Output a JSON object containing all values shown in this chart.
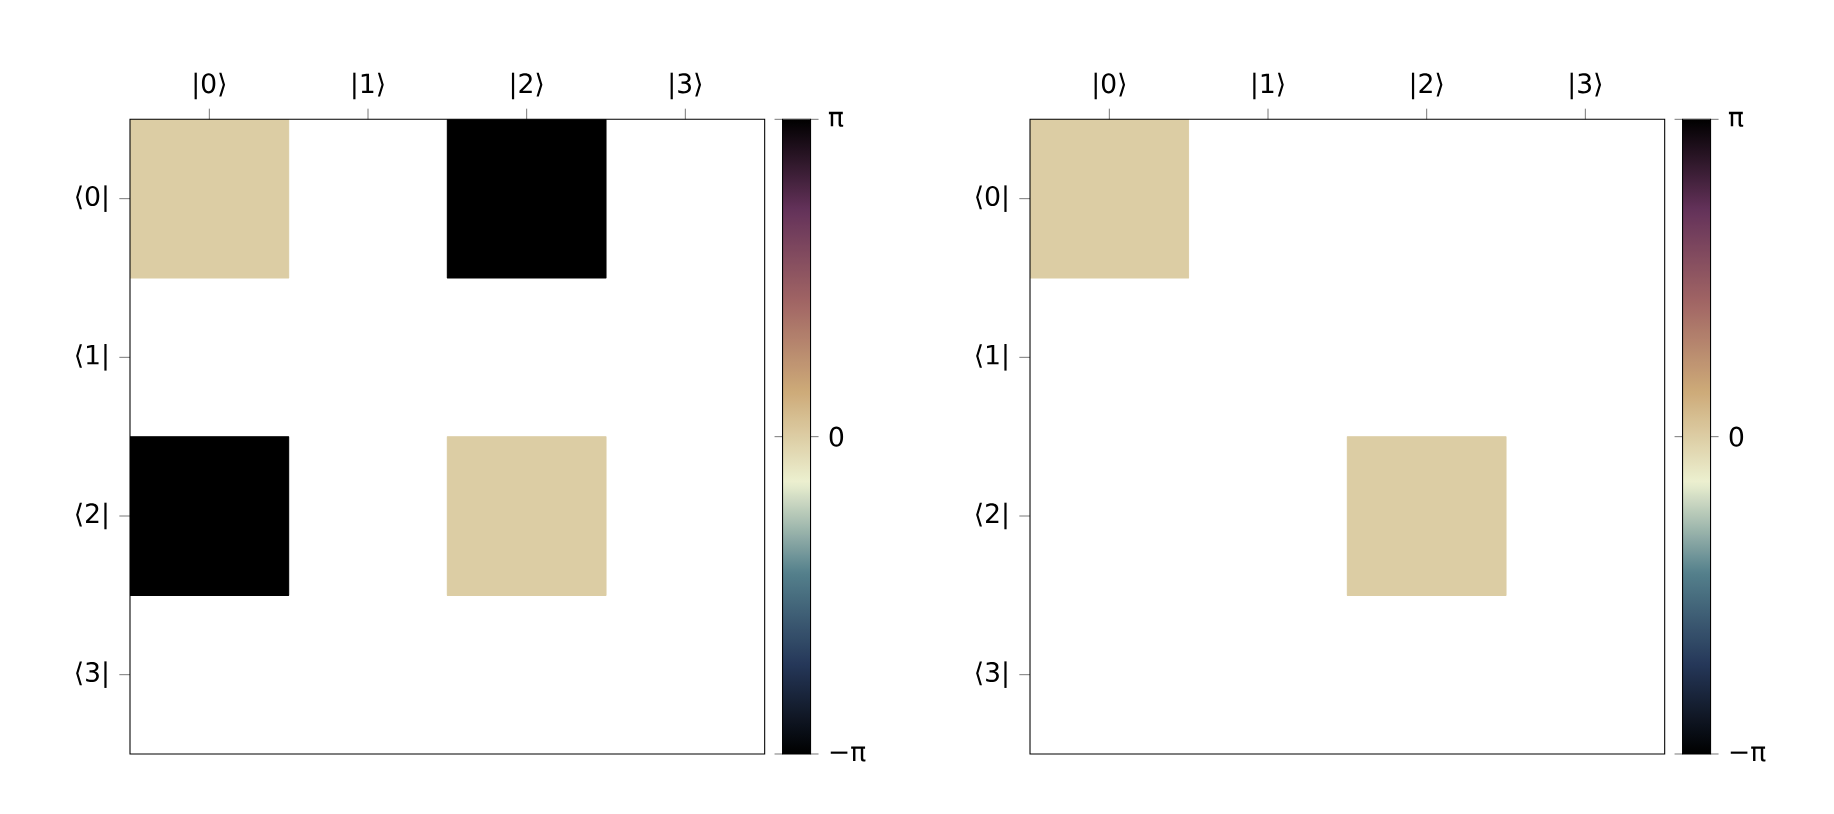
{
  "chart_data": [
    {
      "type": "heatmap",
      "categories": [
        "|0⟩",
        "|1⟩",
        "|2⟩",
        "|3⟩"
      ],
      "y_categories": [
        "⟨0|",
        "⟨1|",
        "⟨2|",
        "⟨3|"
      ],
      "cells": [
        [
          0,
          null,
          3.1416,
          null
        ],
        [
          null,
          null,
          null,
          null
        ],
        [
          3.1416,
          null,
          0,
          null
        ],
        [
          null,
          null,
          null,
          null
        ]
      ],
      "clim": [
        -3.1416,
        3.1416
      ],
      "cticks": [
        {
          "value": -3.1416,
          "label": "−π"
        },
        {
          "value": 0,
          "label": "0"
        },
        {
          "value": 3.1416,
          "label": "π"
        }
      ]
    },
    {
      "type": "heatmap",
      "categories": [
        "|0⟩",
        "|1⟩",
        "|2⟩",
        "|3⟩"
      ],
      "y_categories": [
        "⟨0|",
        "⟨1|",
        "⟨2|",
        "⟨3|"
      ],
      "cells": [
        [
          0,
          null,
          null,
          null
        ],
        [
          null,
          null,
          null,
          null
        ],
        [
          null,
          null,
          0,
          null
        ],
        [
          null,
          null,
          null,
          null
        ]
      ],
      "clim": [
        -3.1416,
        3.1416
      ],
      "cticks": [
        {
          "value": -3.1416,
          "label": "−π"
        },
        {
          "value": 0,
          "label": "0"
        },
        {
          "value": 3.1416,
          "label": "π"
        }
      ]
    }
  ]
}
